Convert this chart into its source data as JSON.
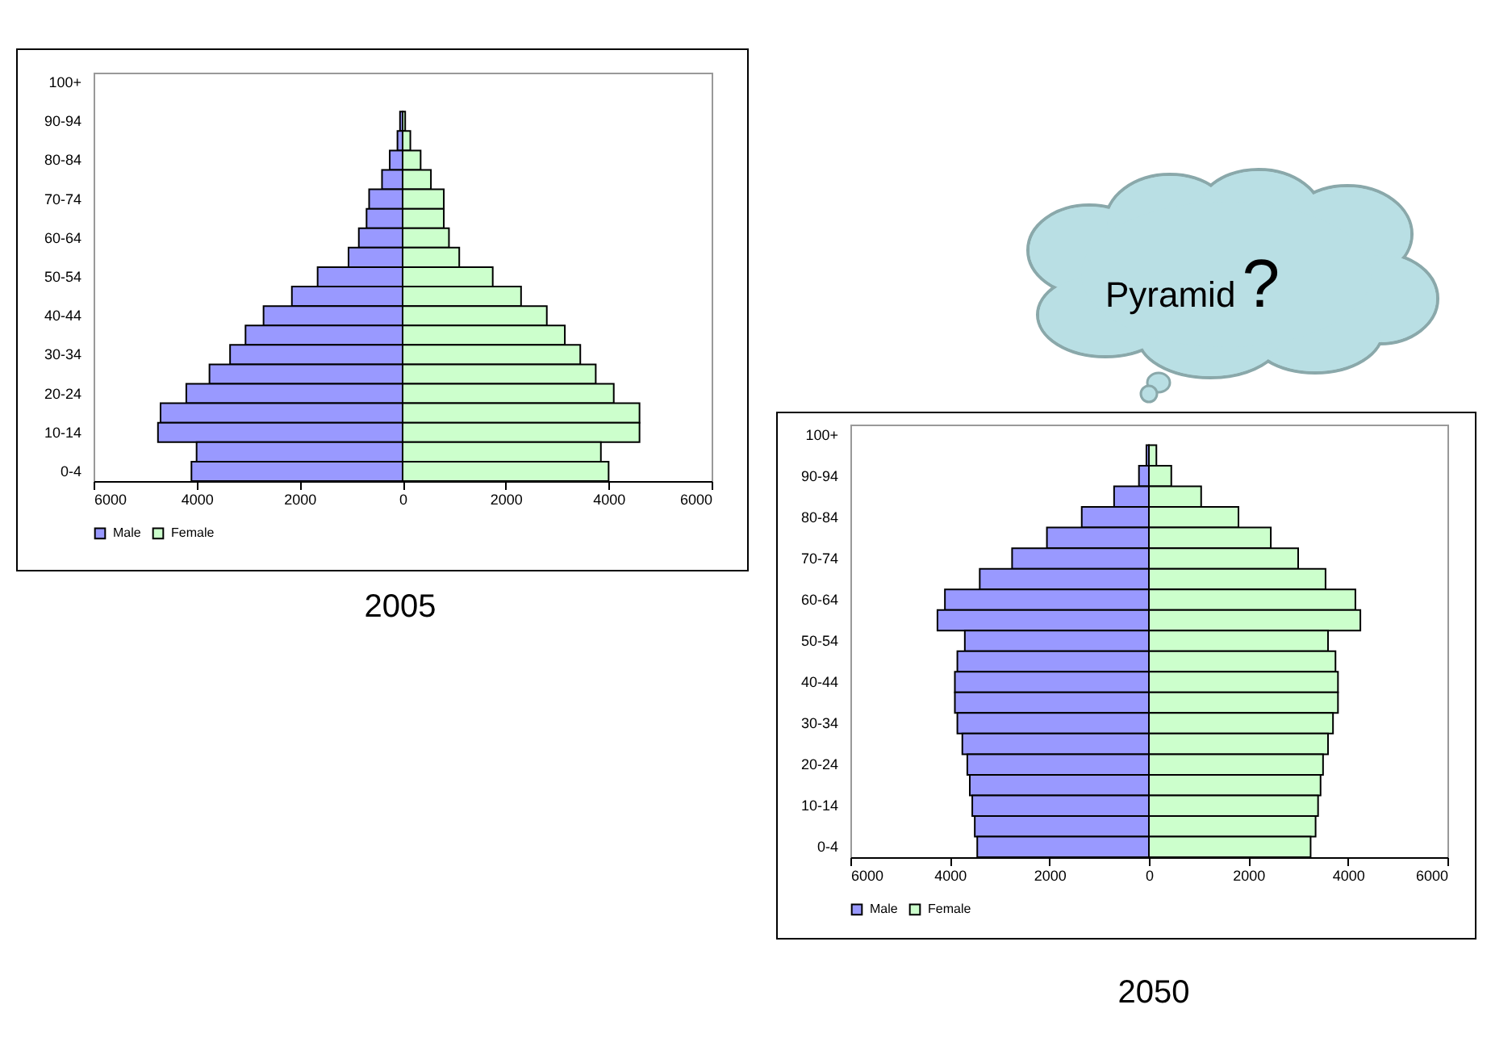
{
  "chart_data": [
    {
      "type": "bar",
      "title": "2005",
      "orientation": "horizontal",
      "stacked": true,
      "legend": "bottom",
      "grid": false,
      "categories": [
        "100+",
        null,
        "90-94",
        null,
        "80-84",
        null,
        "70-74",
        null,
        "60-64",
        null,
        "50-54",
        null,
        "40-44",
        null,
        "30-34",
        null,
        "20-24",
        null,
        "10-14",
        null,
        "0-4"
      ],
      "series": [
        {
          "name": "Male",
          "color": "#9999ff",
          "values": [
            0,
            0,
            -50,
            -100,
            -250,
            -400,
            -650,
            -700,
            -850,
            -1050,
            -1650,
            -2150,
            -2700,
            -3050,
            -3350,
            -3750,
            -4200,
            -4700,
            -4750,
            -4000,
            -4100
          ]
        },
        {
          "name": "Female",
          "color": "#ccffcc",
          "values": [
            0,
            0,
            50,
            150,
            350,
            550,
            800,
            800,
            900,
            1100,
            1750,
            2300,
            2800,
            3150,
            3450,
            3750,
            4100,
            4600,
            4600,
            3850,
            4000
          ]
        }
      ],
      "xlim": [
        -6000,
        6000
      ],
      "xticks": [
        {
          "value": -6000,
          "label": "6000"
        },
        {
          "value": -4000,
          "label": "4000"
        },
        {
          "value": -2000,
          "label": "2000"
        },
        0,
        2000,
        4000,
        6000
      ]
    },
    {
      "type": "bar",
      "title": "2050",
      "orientation": "horizontal",
      "stacked": true,
      "legend": "bottom",
      "grid": false,
      "categories": [
        "100+",
        null,
        "90-94",
        null,
        "80-84",
        null,
        "70-74",
        null,
        "60-64",
        null,
        "50-54",
        null,
        "40-44",
        null,
        "30-34",
        null,
        "20-24",
        null,
        "10-14",
        null,
        "0-4"
      ],
      "series": [
        {
          "name": "Male",
          "color": "#9999ff",
          "values": [
            0,
            -50,
            -200,
            -700,
            -1350,
            -2050,
            -2750,
            -3400,
            -4100,
            -4250,
            -3700,
            -3850,
            -3900,
            -3900,
            -3850,
            -3750,
            -3650,
            -3600,
            -3550,
            -3500,
            -3450
          ]
        },
        {
          "name": "Female",
          "color": "#ccffcc",
          "values": [
            0,
            150,
            450,
            1050,
            1800,
            2450,
            3000,
            3550,
            4150,
            4250,
            3600,
            3750,
            3800,
            3800,
            3700,
            3600,
            3500,
            3450,
            3400,
            3350,
            3250
          ]
        }
      ],
      "xlim": [
        -6000,
        6000
      ],
      "xticks": [
        {
          "value": -6000,
          "label": "6000"
        },
        {
          "value": -4000,
          "label": "4000"
        },
        {
          "value": -2000,
          "label": "2000"
        },
        0,
        2000,
        4000,
        6000
      ],
      "annotations": [
        "Pyramid?"
      ]
    }
  ]
}
